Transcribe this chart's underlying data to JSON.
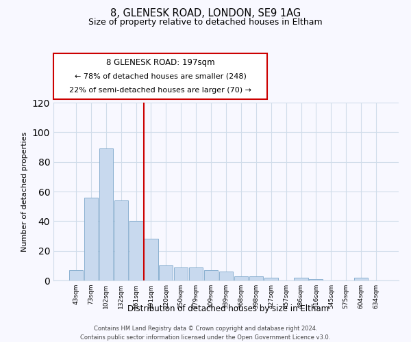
{
  "title1": "8, GLENESK ROAD, LONDON, SE9 1AG",
  "title2": "Size of property relative to detached houses in Eltham",
  "xlabel": "Distribution of detached houses by size in Eltham",
  "ylabel": "Number of detached properties",
  "bar_color": "#c8d9ee",
  "bar_edge_color": "#8ab0d0",
  "categories": [
    "43sqm",
    "73sqm",
    "102sqm",
    "132sqm",
    "161sqm",
    "191sqm",
    "220sqm",
    "250sqm",
    "279sqm",
    "309sqm",
    "339sqm",
    "368sqm",
    "398sqm",
    "427sqm",
    "457sqm",
    "486sqm",
    "516sqm",
    "545sqm",
    "575sqm",
    "604sqm",
    "634sqm"
  ],
  "values": [
    7,
    56,
    89,
    54,
    40,
    28,
    10,
    9,
    9,
    7,
    6,
    3,
    3,
    2,
    0,
    2,
    1,
    0,
    0,
    2,
    0
  ],
  "ylim": [
    0,
    120
  ],
  "yticks": [
    0,
    20,
    40,
    60,
    80,
    100,
    120
  ],
  "property_label": "8 GLENESK ROAD: 197sqm",
  "pct_smaller": 78,
  "n_smaller": 248,
  "pct_larger": 22,
  "n_larger": 70,
  "vline_x": 5.0,
  "footer1": "Contains HM Land Registry data © Crown copyright and database right 2024.",
  "footer2": "Contains public sector information licensed under the Open Government Licence v3.0.",
  "grid_color": "#d0dcea",
  "vline_color": "#cc0000",
  "box_edge_color": "#cc0000",
  "background_color": "#f8f8ff"
}
